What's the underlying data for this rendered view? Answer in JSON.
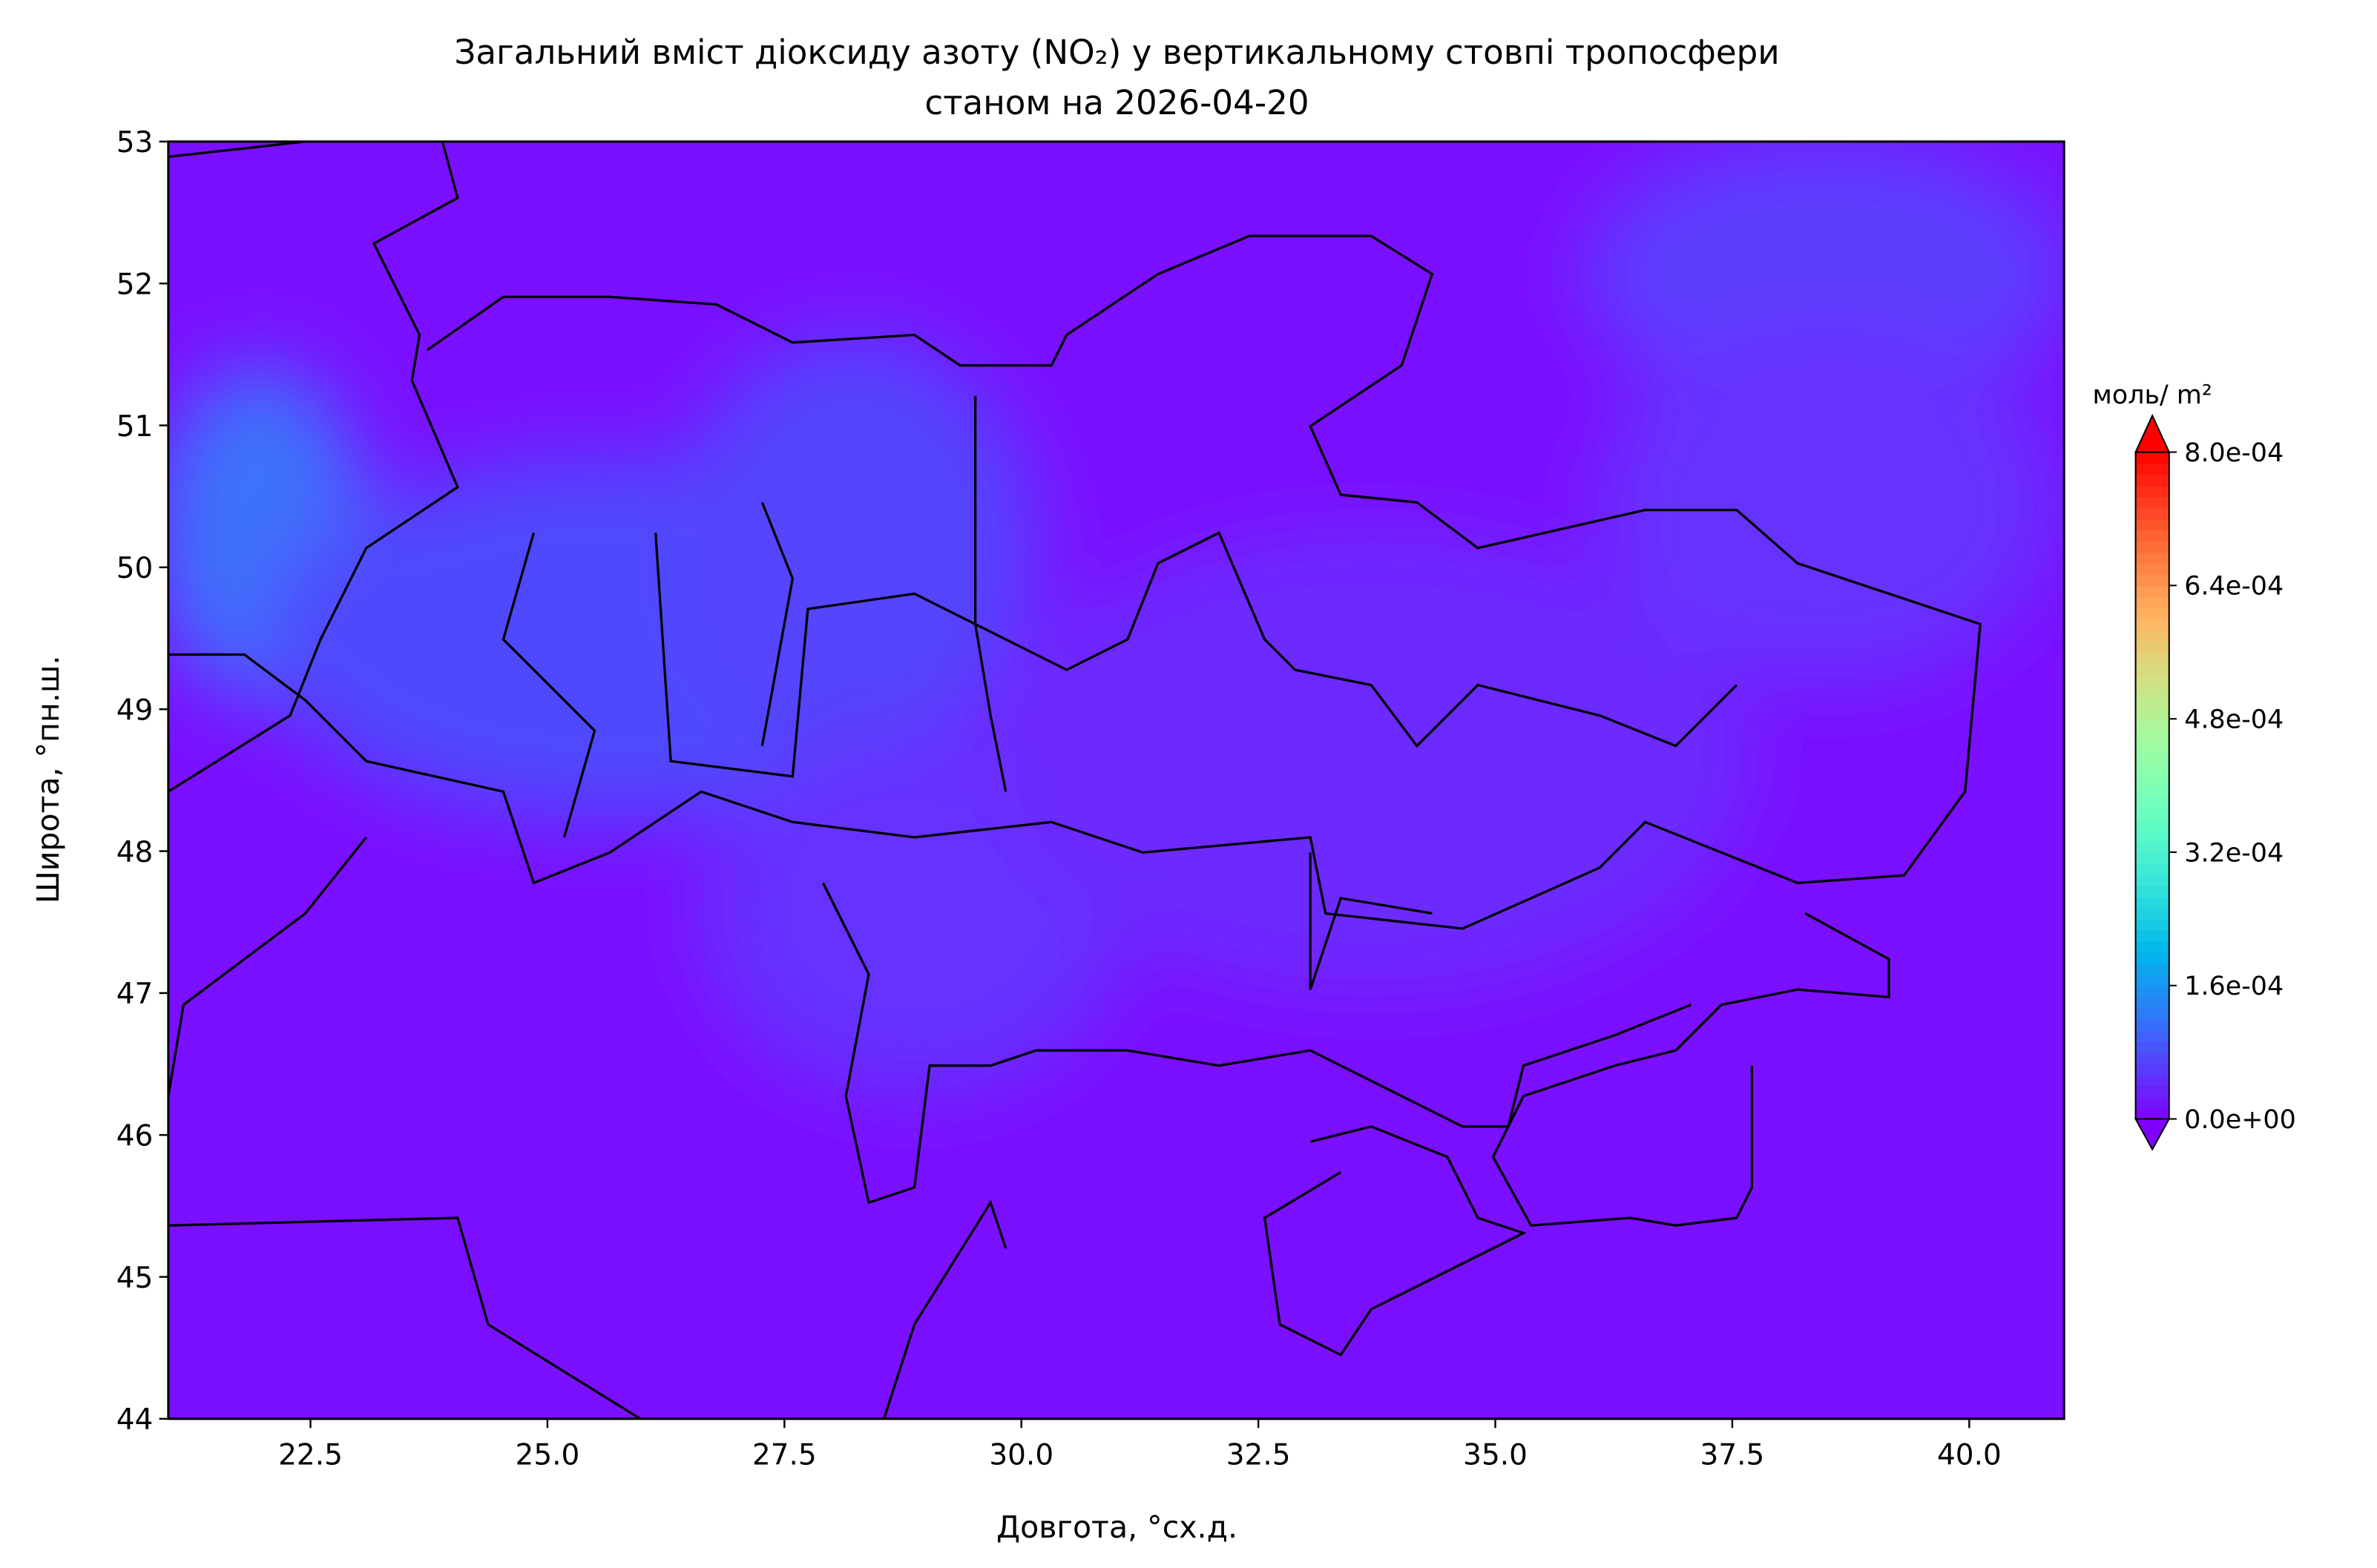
{
  "chart_data": {
    "type": "contour",
    "title": "Загальний вміст діоксиду азоту (NO₂) у вертикальному стовпі тропосфери",
    "subtitle": "станом на 2026-04-20",
    "xlabel": "Довгота, °сх.д.",
    "ylabel": "Широта, °пн.ш.",
    "xlim": [
      21,
      41
    ],
    "ylim": [
      44,
      53
    ],
    "xticks": [
      22.5,
      {
        "value": 25,
        "label": "25.0"
      },
      27.5,
      {
        "value": 30,
        "label": "30.0"
      },
      32.5,
      {
        "value": 35,
        "label": "35.0"
      },
      37.5,
      {
        "value": 40,
        "label": "40.0"
      }
    ],
    "yticks": [
      44,
      45,
      46,
      47,
      48,
      49,
      50,
      51,
      52,
      53
    ],
    "colormap": "rainbow",
    "colorbar_extend": "both",
    "colorbar_label": "моль/ m²",
    "clim": [
      0,
      0.0008
    ],
    "colorbar_ticks": [
      {
        "value": 0,
        "label": "0.0e+00"
      },
      {
        "value": 0.00016,
        "label": "1.6e-04"
      },
      {
        "value": 0.00032,
        "label": "3.2e-04"
      },
      {
        "value": 0.00048,
        "label": "4.8e-04"
      },
      {
        "value": 0.00064,
        "label": "6.4e-04"
      },
      {
        "value": 0.0008,
        "label": "8.0e-04"
      }
    ]
  }
}
